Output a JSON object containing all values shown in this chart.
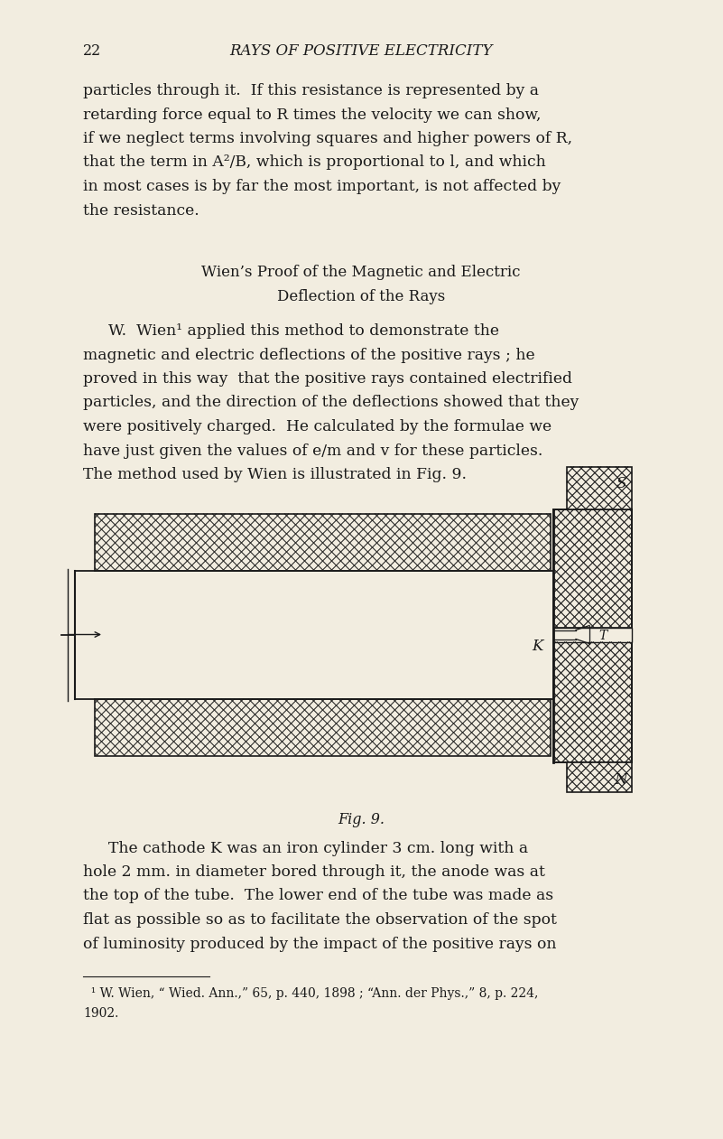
{
  "background_color": "#f2ede0",
  "text_color": "#1a1a1a",
  "page_number": "22",
  "header": "RAYS OF POSITIVE ELECTRICITY",
  "para1_lines": [
    "particles through it.  If this resistance is represented by a",
    "retarding force equal to R times the velocity we can show,",
    "if we neglect terms involving squares and higher powers of R,",
    "that the term in A²/B, which is proportional to l, and which",
    "in most cases is by far the most important, is not affected by",
    "the resistance."
  ],
  "section_title_line1": "Wien’s Proof of the Magnetic and Electric",
  "section_title_line2": "Deflection of the Rays",
  "para2_lines": [
    "W.  Wien¹ applied this method to demonstrate the",
    "magnetic and electric deflections of the positive rays ; he",
    "proved in this way  that the positive rays contained electrified",
    "particles, and the direction of the deflections showed that they",
    "were positively charged.  He calculated by the formulae we",
    "have just given the values of e/m and v for these particles.",
    "The method used by Wien is illustrated in Fig. 9."
  ],
  "fig_caption": "Fig. 9.",
  "para3_lines": [
    "The cathode K was an iron cylinder 3 cm. long with a",
    "hole 2 mm. in diameter bored through it, the anode was at",
    "the top of the tube.  The lower end of the tube was made as",
    "flat as possible so as to facilitate the observation of the spot",
    "of luminosity produced by the impact of the positive rays on"
  ],
  "footnote_line1": "  ¹ W. Wien, “ Wied. Ann.,” 65, p. 440, 1898 ; “Ann. der Phys.,” 8, p. 224,",
  "footnote_line2": "1902."
}
